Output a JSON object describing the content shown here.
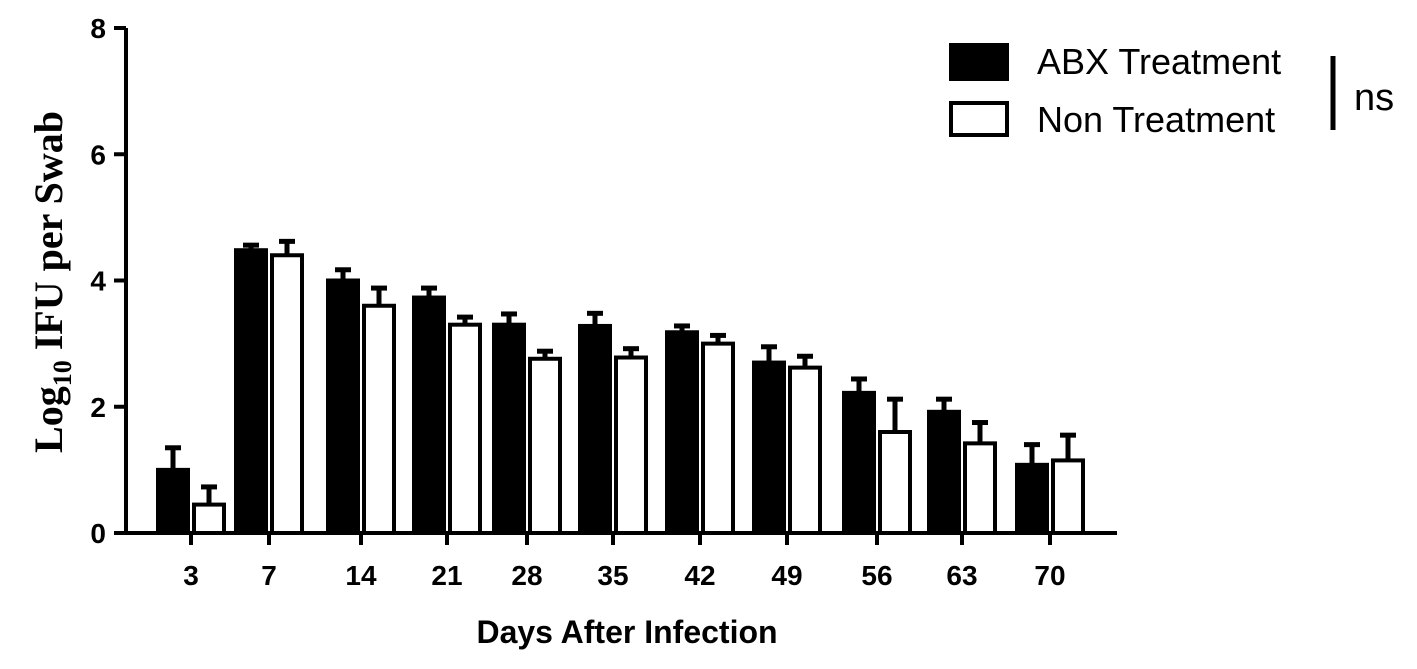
{
  "chart_data": {
    "type": "bar",
    "title": "",
    "xlabel": "Days After Infection",
    "ylabel": {
      "prefix": "Log",
      "subscript": "10",
      "suffix": " IFU per  Swab"
    },
    "categories": [
      "3",
      "7",
      "14",
      "21",
      "28",
      "35",
      "42",
      "49",
      "56",
      "63",
      "70"
    ],
    "ylim": [
      0,
      8
    ],
    "yticks": [
      "0",
      "2",
      "4",
      "6",
      "8"
    ],
    "series": [
      {
        "name": "ABX Treatment",
        "fill": "#000000",
        "values": [
          1.0,
          4.48,
          4.0,
          3.73,
          3.3,
          3.28,
          3.18,
          2.7,
          2.22,
          1.92,
          1.08
        ],
        "errors": [
          0.35,
          0.08,
          0.17,
          0.15,
          0.17,
          0.2,
          0.1,
          0.25,
          0.22,
          0.2,
          0.32
        ]
      },
      {
        "name": "Non Treatment",
        "fill": "#ffffff",
        "values": [
          0.45,
          4.4,
          3.6,
          3.3,
          2.76,
          2.78,
          3.0,
          2.62,
          1.6,
          1.42,
          1.15
        ],
        "errors": [
          0.28,
          0.22,
          0.28,
          0.12,
          0.12,
          0.14,
          0.13,
          0.18,
          0.52,
          0.33,
          0.4
        ]
      }
    ],
    "legend": {
      "position": "top-right"
    },
    "significance": "ns",
    "grid": false
  }
}
